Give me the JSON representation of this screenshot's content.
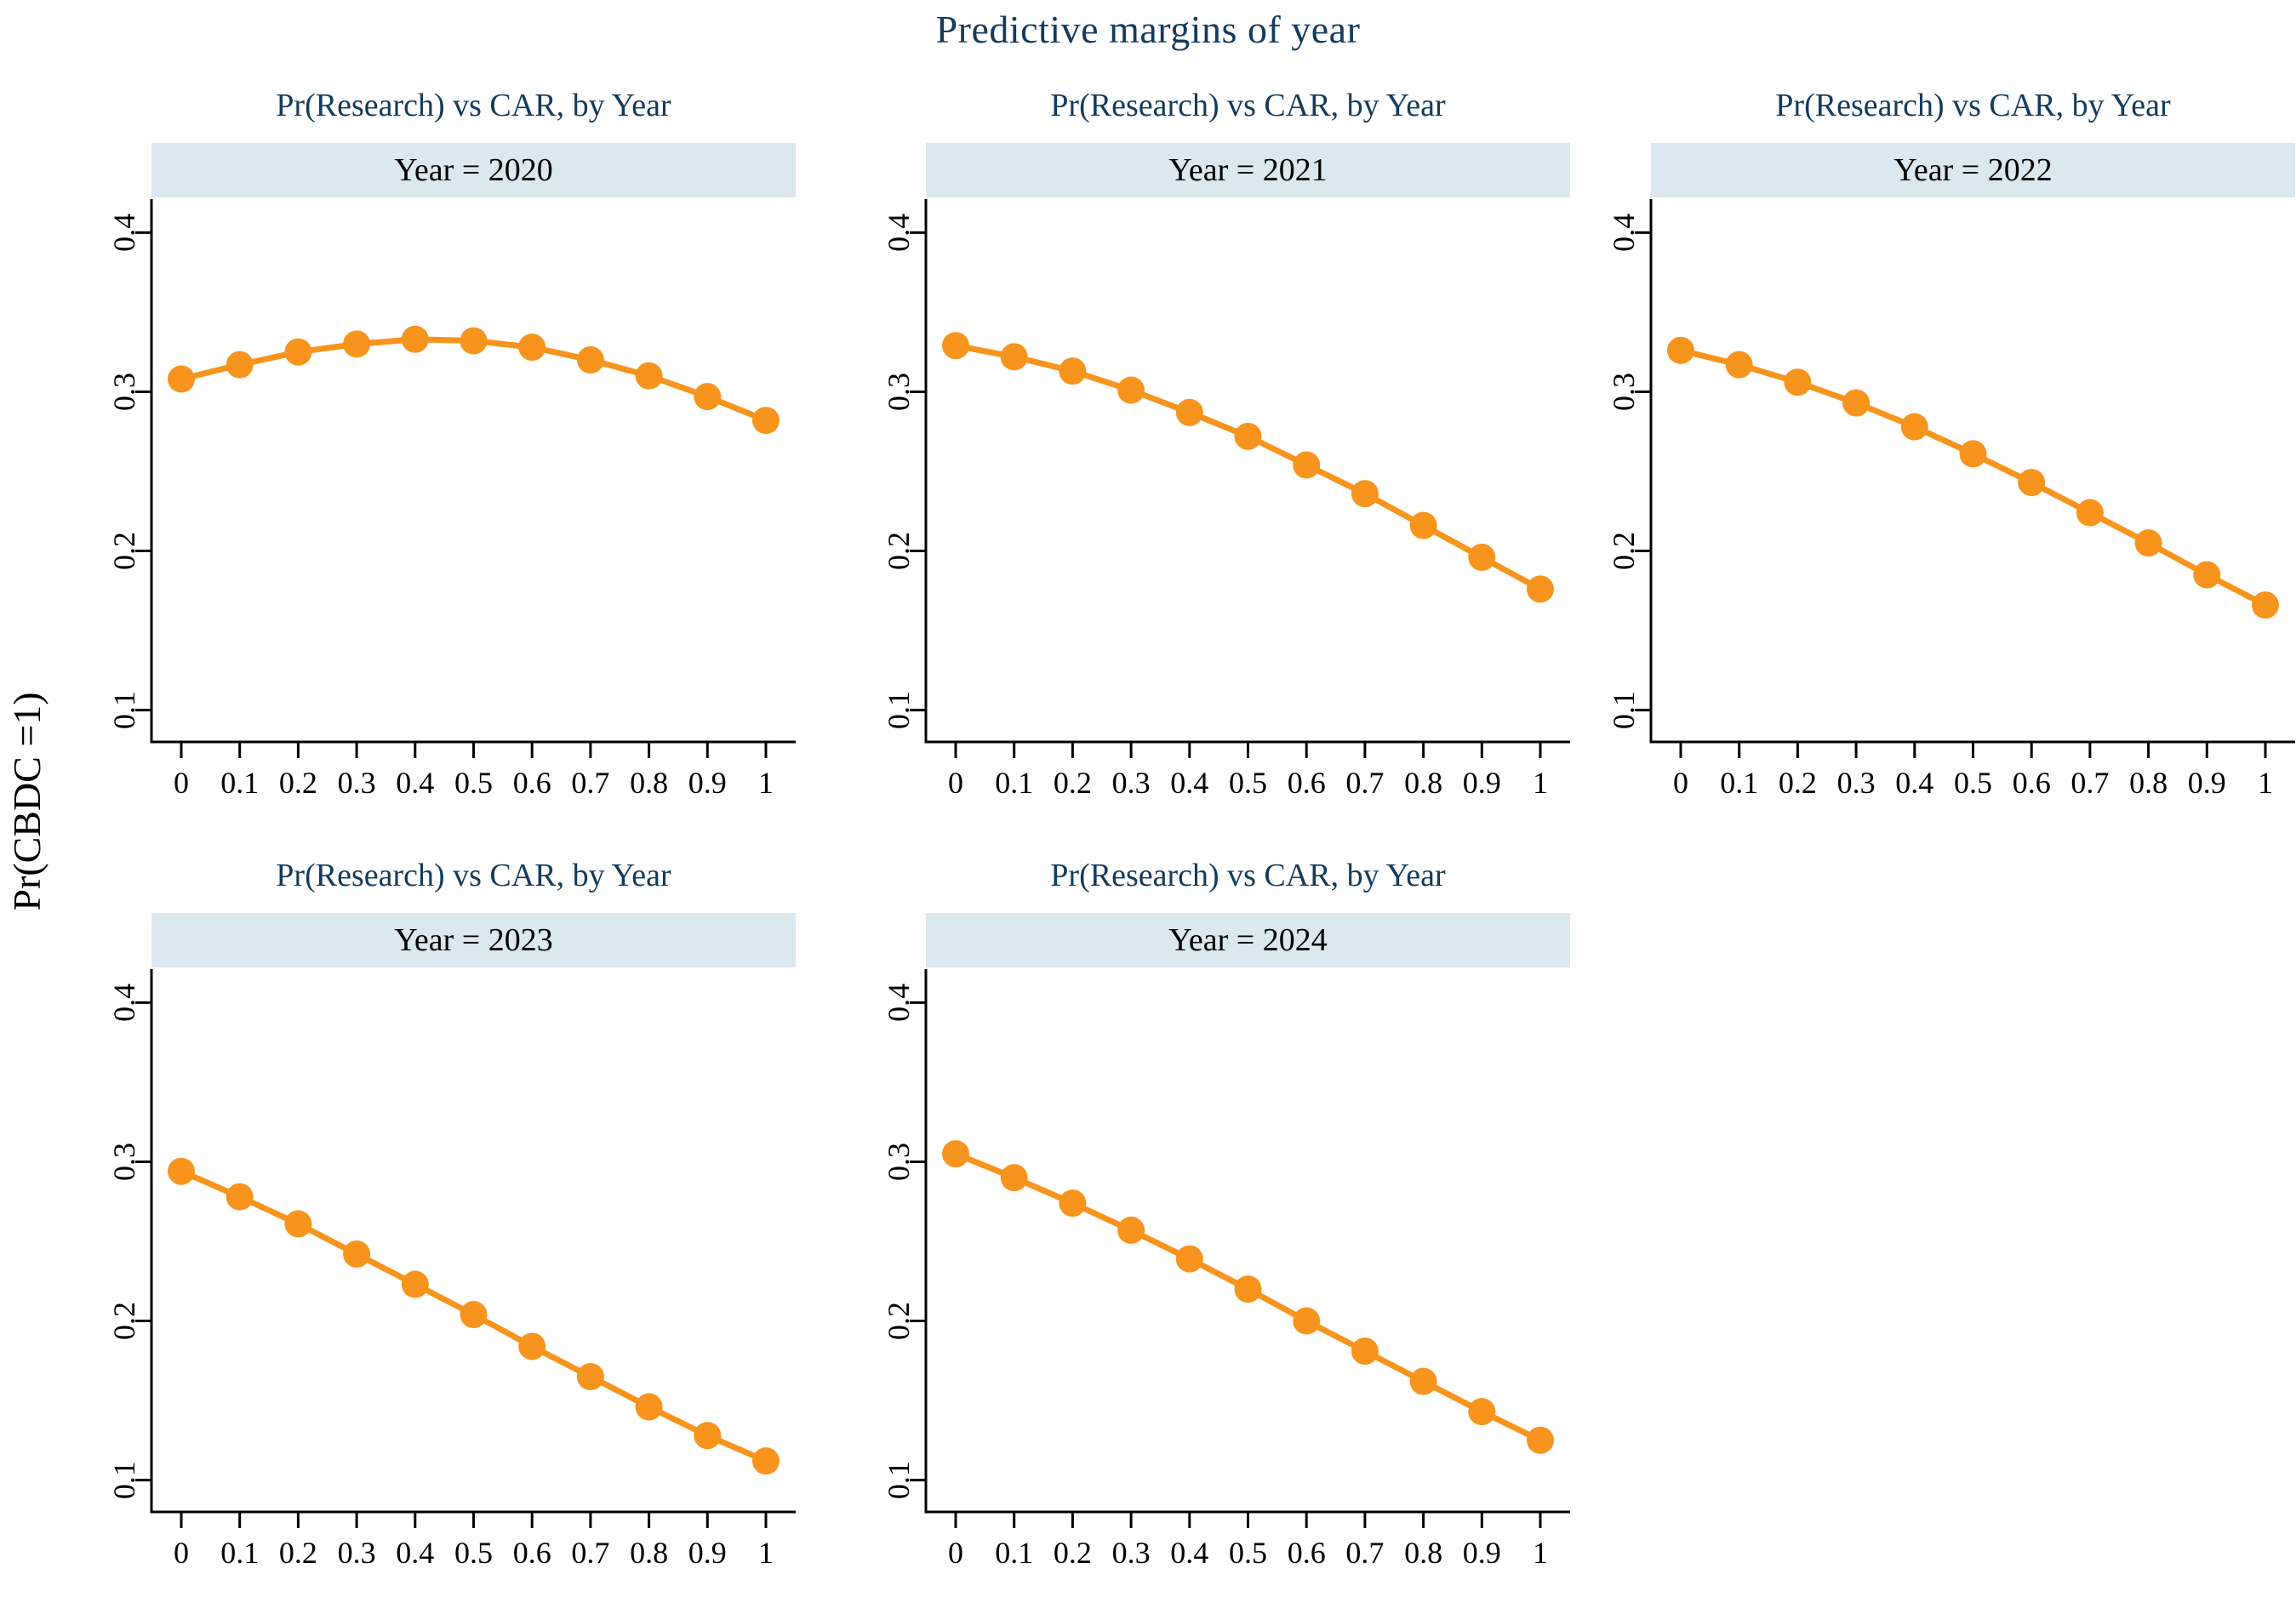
{
  "page": {
    "title": "Predictive margins of year"
  },
  "chart_data": {
    "type": "line",
    "title": "Predictive margins of year",
    "ylabel": "Pr(CBDC =1)",
    "panel_title": "Pr(Research) vs CAR, by Year",
    "x": [
      0,
      0.1,
      0.2,
      0.3,
      0.4,
      0.5,
      0.6,
      0.7,
      0.8,
      0.9,
      1
    ],
    "x_tick_labels": [
      "0",
      "0.1",
      "0.2",
      "0.3",
      "0.4",
      "0.5",
      "0.6",
      "0.7",
      "0.8",
      "0.9",
      "1"
    ],
    "y_ticks": [
      0.1,
      0.2,
      0.3,
      0.4
    ],
    "y_tick_labels": [
      "0.1",
      "0.2",
      "0.3",
      "0.4"
    ],
    "ylim": [
      0.08,
      0.42
    ],
    "xlim": [
      -0.05,
      1.05
    ],
    "grid": false,
    "legend_position": "none",
    "marker": "circle",
    "colors": {
      "line": "#f7941d",
      "marker": "#f7941d",
      "banner_bg": "#dbe8f0",
      "title_text": "#133b5c",
      "axis": "#000000"
    },
    "series": [
      {
        "name": "Year = 2020",
        "year": 2020,
        "values": [
          0.308,
          0.317,
          0.325,
          0.33,
          0.333,
          0.332,
          0.328,
          0.32,
          0.31,
          0.297,
          0.282
        ]
      },
      {
        "name": "Year = 2021",
        "year": 2021,
        "values": [
          0.329,
          0.322,
          0.313,
          0.301,
          0.287,
          0.272,
          0.254,
          0.236,
          0.216,
          0.196,
          0.176
        ]
      },
      {
        "name": "Year = 2022",
        "year": 2022,
        "values": [
          0.326,
          0.317,
          0.306,
          0.293,
          0.278,
          0.261,
          0.243,
          0.224,
          0.205,
          0.185,
          0.166
        ]
      },
      {
        "name": "Year = 2023",
        "year": 2023,
        "values": [
          0.294,
          0.278,
          0.261,
          0.242,
          0.223,
          0.204,
          0.184,
          0.165,
          0.146,
          0.128,
          0.112
        ]
      },
      {
        "name": "Year = 2024",
        "year": 2024,
        "values": [
          0.305,
          0.29,
          0.274,
          0.257,
          0.239,
          0.22,
          0.2,
          0.181,
          0.162,
          0.143,
          0.125
        ]
      }
    ]
  }
}
